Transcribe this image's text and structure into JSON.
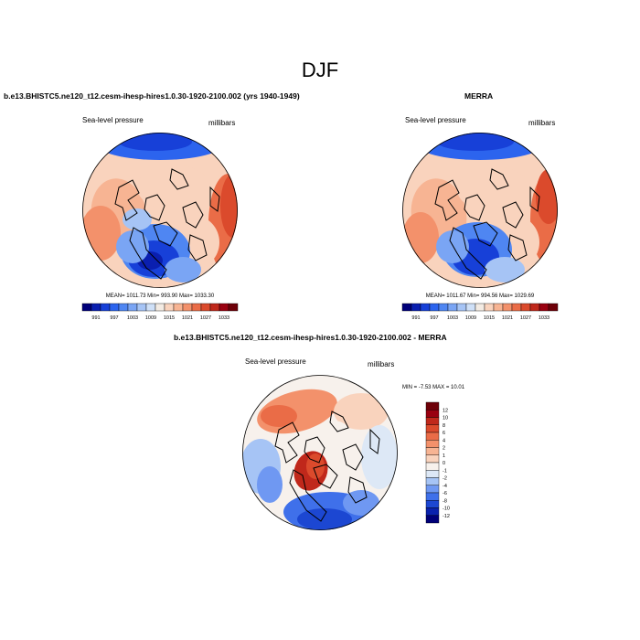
{
  "title": "DJF",
  "panels": [
    {
      "title": "b.e13.BHISTC5.ne120_t12.cesm-ihesp-hires1.0.30-1920-2100.002 (yrs 1940-1949)",
      "left_label": "Sea-level pressure",
      "right_label": "millibars",
      "stats": "MEAN= 1011.73  Min= 993.90  Max= 1033.30"
    },
    {
      "title": "MERRA",
      "left_label": "Sea-level pressure",
      "right_label": "millibars",
      "stats": "MEAN= 1011.67  Min= 994.56  Max= 1029.69"
    },
    {
      "title": "b.e13.BHISTC5.ne120_t12.cesm-ihesp-hires1.0.30-1920-2100.002 - MERRA",
      "left_label": "Sea-level pressure",
      "right_label": "millibars",
      "stats": "MIN =  -7.53 MAX =  10.01"
    }
  ],
  "chart_data": [
    {
      "type": "heatmap",
      "projection": "polar stereographic (north pole)",
      "variable": "Sea-level pressure",
      "units": "millibars",
      "stats": {
        "mean": 1011.73,
        "min": 993.9,
        "max": 1033.3
      },
      "colorbar": {
        "orientation": "horizontal",
        "tick_labels": [
          "991",
          "997",
          "1003",
          "1009",
          "1015",
          "1021",
          "1027",
          "1033"
        ],
        "colors": [
          "#00007a",
          "#0a1fb0",
          "#1740d8",
          "#2c64ee",
          "#4f86f2",
          "#7aa5f4",
          "#a6c4f5",
          "#cfe0f7",
          "#f3ebe3",
          "#f9d3bd",
          "#f7b493",
          "#f3916b",
          "#ea6c47",
          "#db4a2c",
          "#c0281b",
          "#990010",
          "#6e0008"
        ]
      }
    },
    {
      "type": "heatmap",
      "projection": "polar stereographic (north pole)",
      "variable": "Sea-level pressure",
      "units": "millibars",
      "stats": {
        "mean": 1011.67,
        "min": 994.56,
        "max": 1029.69
      },
      "colorbar": {
        "orientation": "horizontal",
        "tick_labels": [
          "991",
          "997",
          "1003",
          "1009",
          "1015",
          "1021",
          "1027",
          "1033"
        ],
        "colors": [
          "#00007a",
          "#0a1fb0",
          "#1740d8",
          "#2c64ee",
          "#4f86f2",
          "#7aa5f4",
          "#a6c4f5",
          "#cfe0f7",
          "#f3ebe3",
          "#f9d3bd",
          "#f7b493",
          "#f3916b",
          "#ea6c47",
          "#db4a2c",
          "#c0281b",
          "#990010",
          "#6e0008"
        ]
      }
    },
    {
      "type": "heatmap",
      "projection": "polar stereographic (north pole)",
      "variable": "Sea-level pressure",
      "units": "millibars",
      "stats": {
        "min": -7.53,
        "max": 10.01
      },
      "colorbar": {
        "orientation": "vertical",
        "tick_labels": [
          "12",
          "10",
          "8",
          "6",
          "4",
          "2",
          "1",
          "0",
          "-1",
          "-2",
          "-4",
          "-6",
          "-8",
          "-10",
          "-12"
        ],
        "colors": [
          "#6e0008",
          "#990010",
          "#c0281b",
          "#db4a2c",
          "#ea6c47",
          "#f3916b",
          "#f7b493",
          "#f9d3bd",
          "#f7f1ec",
          "#dde8f6",
          "#a6c4f5",
          "#6f98f2",
          "#3f70ea",
          "#1c47d2",
          "#0a22ae",
          "#000078"
        ]
      }
    }
  ]
}
